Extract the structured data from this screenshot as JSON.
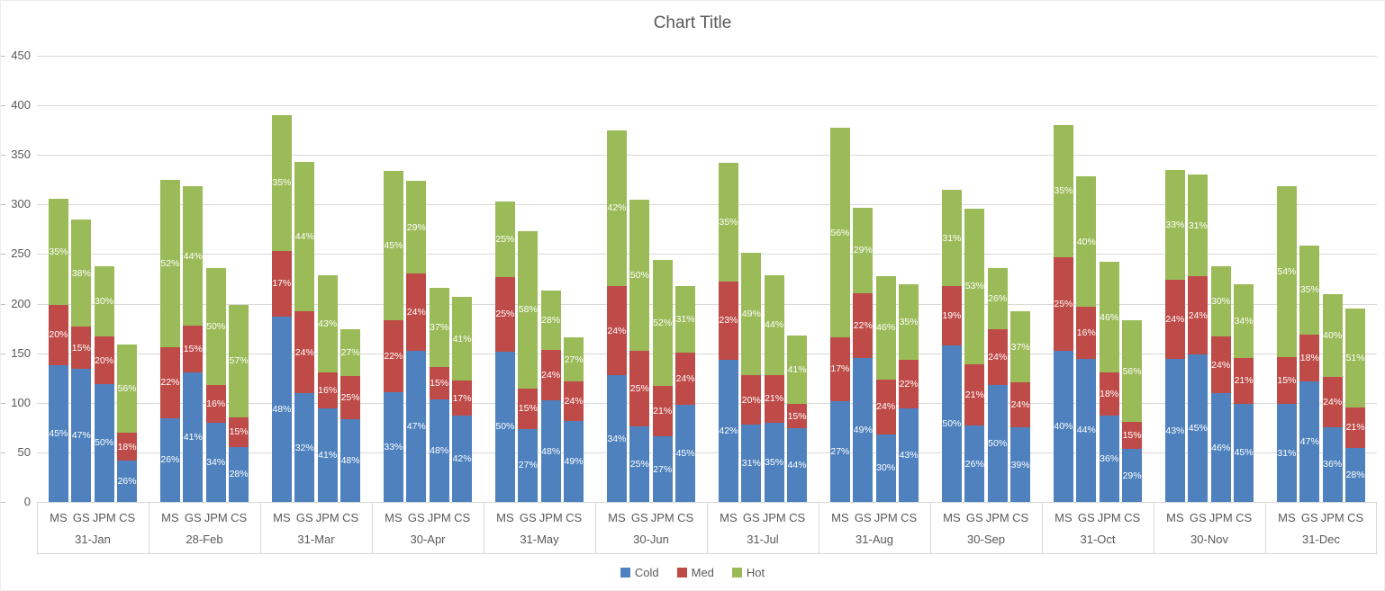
{
  "chart_data": {
    "type": "bar",
    "stacked": true,
    "title": "Chart Title",
    "y_axis": {
      "min": 0,
      "max": 450,
      "step": 50,
      "ticks": [
        0,
        50,
        100,
        150,
        200,
        250,
        300,
        350,
        400,
        450
      ]
    },
    "sub_categories": [
      "MS",
      "GS",
      "JPM",
      "CS"
    ],
    "series_names": [
      "Cold",
      "Med",
      "Hot"
    ],
    "legend": [
      {
        "label": "Cold",
        "color": "#4e81bd"
      },
      {
        "label": "Med",
        "color": "#be4b48"
      },
      {
        "label": "Hot",
        "color": "#9bbb59"
      }
    ],
    "colors": {
      "Cold": "#4e81bd",
      "Med": "#be4b48",
      "Hot": "#9bbb59"
    },
    "grid_color": "#d9d9d9",
    "text_color": "#595959",
    "legend_position": "bottom",
    "groups": [
      {
        "date": "31-Jan",
        "bars": [
          {
            "bank": "MS",
            "total": 306,
            "pct": {
              "Cold": 45,
              "Med": 20,
              "Hot": 35
            }
          },
          {
            "bank": "GS",
            "total": 285,
            "pct": {
              "Cold": 47,
              "Med": 15,
              "Hot": 38
            }
          },
          {
            "bank": "JPM",
            "total": 238,
            "pct": {
              "Cold": 50,
              "Med": 20,
              "Hot": 30
            }
          },
          {
            "bank": "CS",
            "total": 159,
            "pct": {
              "Cold": 26,
              "Med": 18,
              "Hot": 56
            }
          }
        ]
      },
      {
        "date": "28-Feb",
        "bars": [
          {
            "bank": "MS",
            "total": 325,
            "pct": {
              "Cold": 26,
              "Med": 22,
              "Hot": 52
            }
          },
          {
            "bank": "GS",
            "total": 318,
            "pct": {
              "Cold": 41,
              "Med": 15,
              "Hot": 44
            }
          },
          {
            "bank": "JPM",
            "total": 236,
            "pct": {
              "Cold": 34,
              "Med": 16,
              "Hot": 50
            }
          },
          {
            "bank": "CS",
            "total": 199,
            "pct": {
              "Cold": 28,
              "Med": 15,
              "Hot": 57
            }
          }
        ]
      },
      {
        "date": "31-Mar",
        "bars": [
          {
            "bank": "MS",
            "total": 390,
            "pct": {
              "Cold": 48,
              "Med": 17,
              "Hot": 35
            }
          },
          {
            "bank": "GS",
            "total": 343,
            "pct": {
              "Cold": 32,
              "Med": 24,
              "Hot": 44
            }
          },
          {
            "bank": "JPM",
            "total": 229,
            "pct": {
              "Cold": 41,
              "Med": 16,
              "Hot": 43
            }
          },
          {
            "bank": "CS",
            "total": 174,
            "pct": {
              "Cold": 48,
              "Med": 25,
              "Hot": 27
            }
          }
        ]
      },
      {
        "date": "30-Apr",
        "bars": [
          {
            "bank": "MS",
            "total": 334,
            "pct": {
              "Cold": 33,
              "Med": 22,
              "Hot": 45
            }
          },
          {
            "bank": "GS",
            "total": 324,
            "pct": {
              "Cold": 47,
              "Med": 24,
              "Hot": 29
            }
          },
          {
            "bank": "JPM",
            "total": 216,
            "pct": {
              "Cold": 48,
              "Med": 15,
              "Hot": 37
            }
          },
          {
            "bank": "CS",
            "total": 207,
            "pct": {
              "Cold": 42,
              "Med": 17,
              "Hot": 41
            }
          }
        ]
      },
      {
        "date": "31-May",
        "bars": [
          {
            "bank": "MS",
            "total": 303,
            "pct": {
              "Cold": 50,
              "Med": 25,
              "Hot": 25
            }
          },
          {
            "bank": "GS",
            "total": 273,
            "pct": {
              "Cold": 27,
              "Med": 15,
              "Hot": 58
            }
          },
          {
            "bank": "JPM",
            "total": 213,
            "pct": {
              "Cold": 48,
              "Med": 24,
              "Hot": 28
            }
          },
          {
            "bank": "CS",
            "total": 166,
            "pct": {
              "Cold": 49,
              "Med": 24,
              "Hot": 27
            }
          }
        ]
      },
      {
        "date": "30-Jun",
        "bars": [
          {
            "bank": "MS",
            "total": 375,
            "pct": {
              "Cold": 34,
              "Med": 24,
              "Hot": 42
            }
          },
          {
            "bank": "GS",
            "total": 305,
            "pct": {
              "Cold": 25,
              "Med": 25,
              "Hot": 50
            }
          },
          {
            "bank": "JPM",
            "total": 244,
            "pct": {
              "Cold": 27,
              "Med": 21,
              "Hot": 52
            }
          },
          {
            "bank": "CS",
            "total": 218,
            "pct": {
              "Cold": 45,
              "Med": 24,
              "Hot": 31
            }
          }
        ]
      },
      {
        "date": "31-Jul",
        "bars": [
          {
            "bank": "MS",
            "total": 342,
            "pct": {
              "Cold": 42,
              "Med": 23,
              "Hot": 35
            }
          },
          {
            "bank": "GS",
            "total": 251,
            "pct": {
              "Cold": 31,
              "Med": 20,
              "Hot": 49
            }
          },
          {
            "bank": "JPM",
            "total": 229,
            "pct": {
              "Cold": 35,
              "Med": 21,
              "Hot": 44
            }
          },
          {
            "bank": "CS",
            "total": 168,
            "pct": {
              "Cold": 44,
              "Med": 15,
              "Hot": 41
            }
          }
        ]
      },
      {
        "date": "31-Aug",
        "bars": [
          {
            "bank": "MS",
            "total": 377,
            "pct": {
              "Cold": 27,
              "Med": 17,
              "Hot": 56
            }
          },
          {
            "bank": "GS",
            "total": 297,
            "pct": {
              "Cold": 49,
              "Med": 22,
              "Hot": 29
            }
          },
          {
            "bank": "JPM",
            "total": 228,
            "pct": {
              "Cold": 30,
              "Med": 24,
              "Hot": 46
            }
          },
          {
            "bank": "CS",
            "total": 220,
            "pct": {
              "Cold": 43,
              "Med": 22,
              "Hot": 35
            }
          }
        ]
      },
      {
        "date": "30-Sep",
        "bars": [
          {
            "bank": "MS",
            "total": 315,
            "pct": {
              "Cold": 50,
              "Med": 19,
              "Hot": 31
            }
          },
          {
            "bank": "GS",
            "total": 296,
            "pct": {
              "Cold": 26,
              "Med": 21,
              "Hot": 53
            }
          },
          {
            "bank": "JPM",
            "total": 236,
            "pct": {
              "Cold": 50,
              "Med": 24,
              "Hot": 26
            }
          },
          {
            "bank": "CS",
            "total": 192,
            "pct": {
              "Cold": 39,
              "Med": 24,
              "Hot": 37
            }
          }
        ]
      },
      {
        "date": "31-Oct",
        "bars": [
          {
            "bank": "MS",
            "total": 380,
            "pct": {
              "Cold": 40,
              "Med": 25,
              "Hot": 35
            }
          },
          {
            "bank": "GS",
            "total": 328,
            "pct": {
              "Cold": 44,
              "Med": 16,
              "Hot": 40
            }
          },
          {
            "bank": "JPM",
            "total": 242,
            "pct": {
              "Cold": 36,
              "Med": 18,
              "Hot": 46
            }
          },
          {
            "bank": "CS",
            "total": 183,
            "pct": {
              "Cold": 29,
              "Med": 15,
              "Hot": 56
            }
          }
        ]
      },
      {
        "date": "30-Nov",
        "bars": [
          {
            "bank": "MS",
            "total": 335,
            "pct": {
              "Cold": 43,
              "Med": 24,
              "Hot": 33
            }
          },
          {
            "bank": "GS",
            "total": 330,
            "pct": {
              "Cold": 45,
              "Med": 24,
              "Hot": 31
            }
          },
          {
            "bank": "JPM",
            "total": 238,
            "pct": {
              "Cold": 46,
              "Med": 24,
              "Hot": 30
            }
          },
          {
            "bank": "CS",
            "total": 220,
            "pct": {
              "Cold": 45,
              "Med": 21,
              "Hot": 34
            }
          }
        ]
      },
      {
        "date": "31-Dec",
        "bars": [
          {
            "bank": "MS",
            "total": 318,
            "pct": {
              "Cold": 31,
              "Med": 15,
              "Hot": 54
            }
          },
          {
            "bank": "GS",
            "total": 259,
            "pct": {
              "Cold": 47,
              "Med": 18,
              "Hot": 35
            }
          },
          {
            "bank": "JPM",
            "total": 210,
            "pct": {
              "Cold": 36,
              "Med": 24,
              "Hot": 40
            }
          },
          {
            "bank": "CS",
            "total": 195,
            "pct": {
              "Cold": 28,
              "Med": 21,
              "Hot": 51
            }
          }
        ]
      }
    ]
  }
}
